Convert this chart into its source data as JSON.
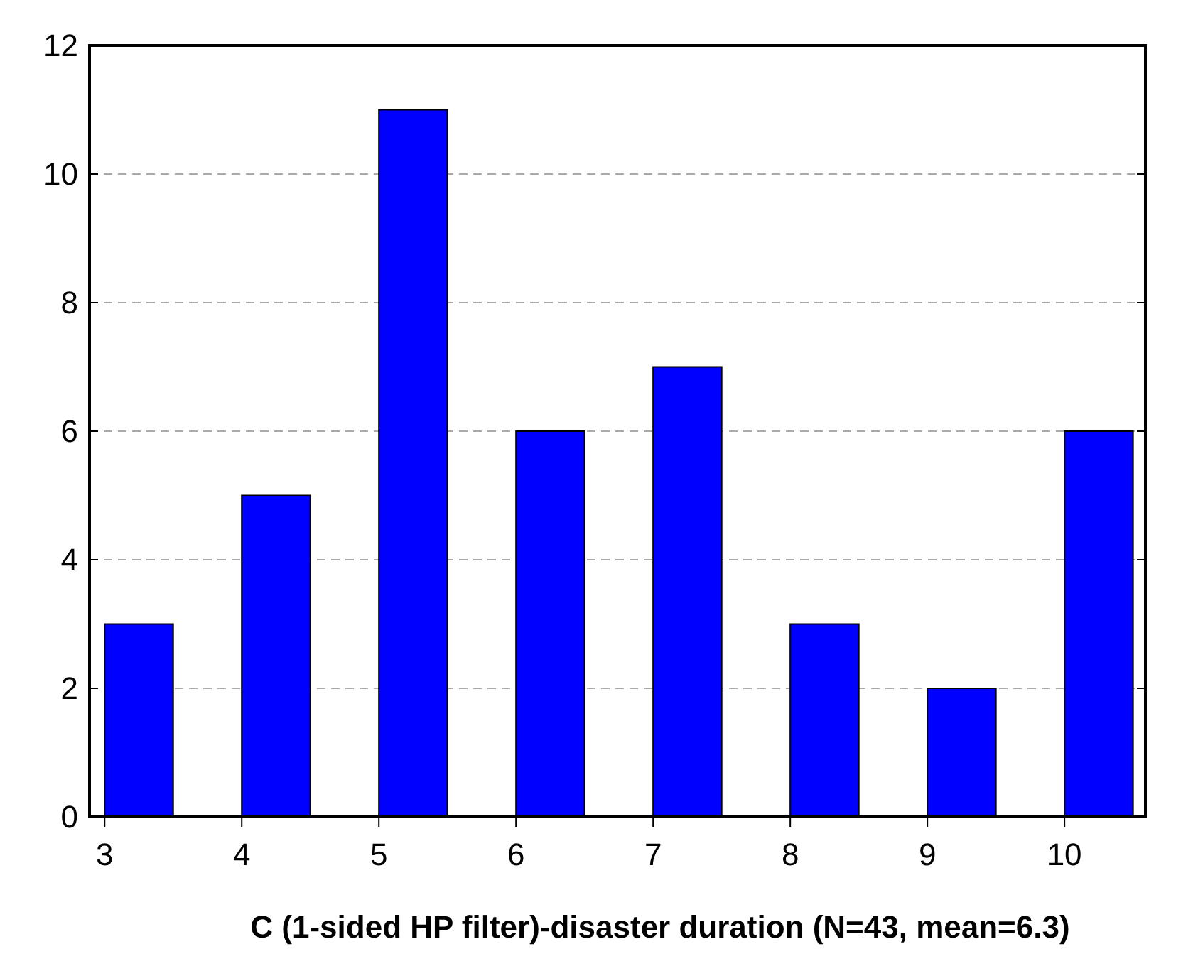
{
  "chart_data": {
    "type": "histogram",
    "xlabel": "C (1-sided HP filter)-disaster duration (N=43, mean=6.3)",
    "bins": [
      3,
      3.5,
      4,
      4.5,
      5,
      5.5,
      6,
      6.5,
      7,
      7.5,
      8,
      8.5,
      9,
      9.5,
      10,
      10.5
    ],
    "values": [
      3,
      0,
      5,
      0,
      11,
      0,
      6,
      0,
      7,
      0,
      3,
      0,
      2,
      0,
      6
    ],
    "color": "#0000ff",
    "xlim": [
      2.89,
      10.59
    ],
    "xticks": [
      3,
      4,
      5,
      6,
      7,
      8,
      9,
      10
    ],
    "ylim": [
      0,
      12
    ],
    "yticks": [
      0,
      2,
      4,
      6,
      8,
      10,
      12
    ],
    "grid": "y"
  }
}
